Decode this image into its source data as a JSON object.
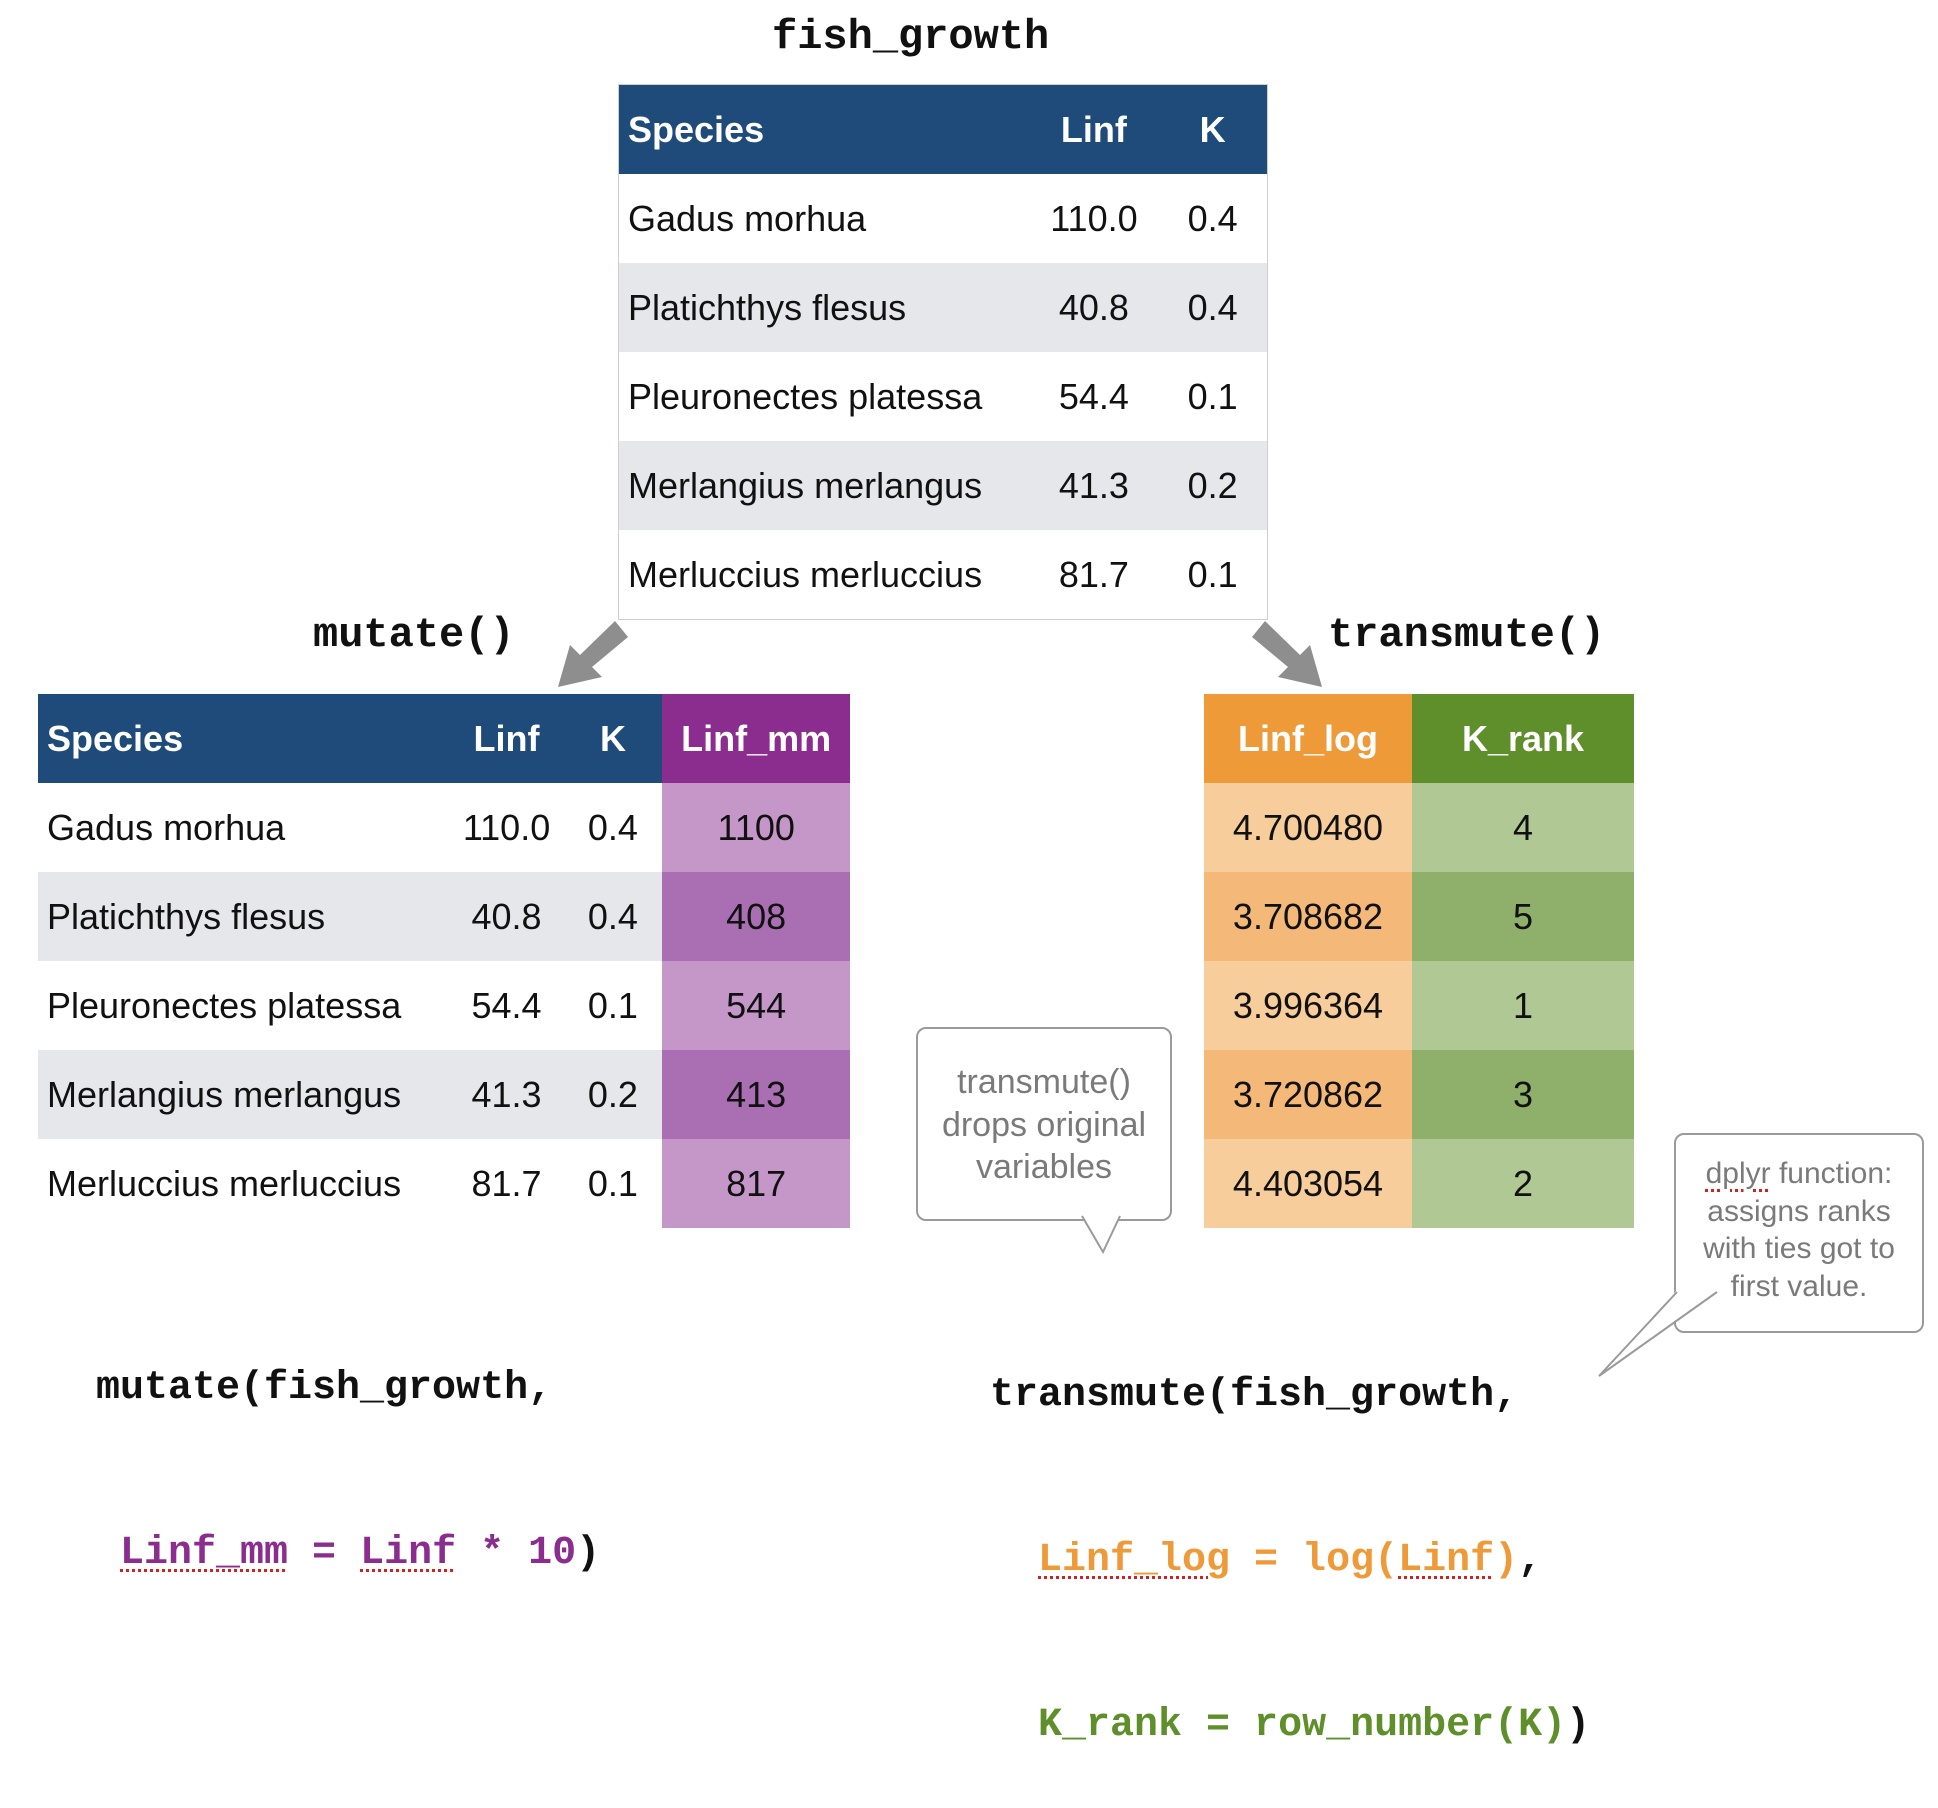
{
  "titles": {
    "source": "fish_growth",
    "mutate": "mutate()",
    "transmute": "transmute()"
  },
  "source_table": {
    "headers": [
      "Species",
      "Linf",
      "K"
    ],
    "rows": [
      [
        "Gadus morhua",
        "110.0",
        "0.4"
      ],
      [
        "Platichthys flesus",
        "40.8",
        "0.4"
      ],
      [
        "Pleuronectes platessa",
        "54.4",
        "0.1"
      ],
      [
        "Merlangius merlangus",
        "41.3",
        "0.2"
      ],
      [
        "Merluccius merluccius",
        "81.7",
        "0.1"
      ]
    ]
  },
  "mutate_table": {
    "headers": [
      "Species",
      "Linf",
      "K",
      "Linf_mm"
    ],
    "rows": [
      [
        "Gadus morhua",
        "110.0",
        "0.4",
        "1100"
      ],
      [
        "Platichthys flesus",
        "40.8",
        "0.4",
        "408"
      ],
      [
        "Pleuronectes platessa",
        "54.4",
        "0.1",
        "544"
      ],
      [
        "Merlangius merlangus",
        "41.3",
        "0.2",
        "413"
      ],
      [
        "Merluccius merluccius",
        "81.7",
        "0.1",
        "817"
      ]
    ]
  },
  "transmute_table": {
    "headers": [
      "Linf_log",
      "K_rank"
    ],
    "rows": [
      [
        "4.700480",
        "4"
      ],
      [
        "3.708682",
        "5"
      ],
      [
        "3.996364",
        "1"
      ],
      [
        "3.720862",
        "3"
      ],
      [
        "4.403054",
        "2"
      ]
    ]
  },
  "mutate_code": {
    "line1": "mutate(fish_growth,",
    "new_col": "Linf_mm",
    "eq": " = ",
    "src_col": "Linf",
    "expr_rest": " * 10",
    "close": ")"
  },
  "transmute_code": {
    "line1": "transmute(fish_growth,",
    "col1": "Linf_log",
    "eq1": " = log(",
    "arg1": "Linf",
    "close1": ")",
    "comma": ",",
    "col2": "K_rank",
    "eq2": " = row_number(K)",
    "close2": ")"
  },
  "callouts": {
    "transmute_note": [
      "transmute()",
      "drops original",
      "variables"
    ],
    "rank_note": [
      "dplyr function:",
      "assigns ranks",
      "with ties got to",
      "first value."
    ],
    "rank_note_word": "dplyr"
  },
  "colors": {
    "header_blue": "#1e4b7a",
    "purple": "#8b2d8e",
    "orange": "#ef9a38",
    "green": "#5f8f2a",
    "arrow_gray": "#8e8e8e"
  }
}
